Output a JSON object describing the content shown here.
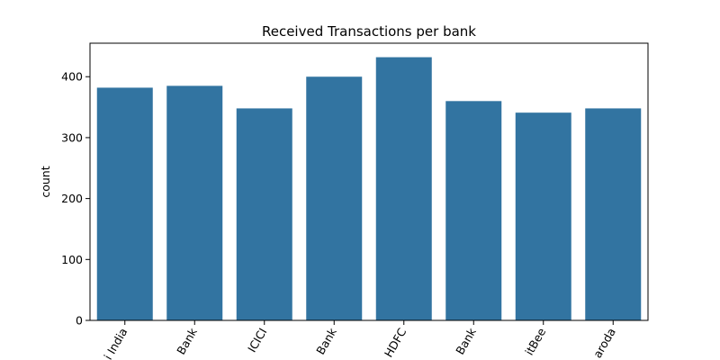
{
  "chart_data": {
    "type": "bar",
    "title": "Received Transactions per bank",
    "xlabel": "",
    "ylabel": "count",
    "categories": [
      "State Bank of India",
      "Axis Bank",
      "ICICI",
      "Kotak Bank",
      "HDFC",
      "Yes Bank",
      "PaytmBee",
      "Bank of Baroda"
    ],
    "visible_tick_text": [
      "i India",
      "Bank",
      "ICICI",
      "Bank",
      "HDFC",
      "Bank",
      "itBee",
      "aroda"
    ],
    "values": [
      382,
      385,
      348,
      400,
      432,
      360,
      341,
      348
    ],
    "ylim": [
      0,
      455
    ],
    "yticks": [
      0,
      100,
      200,
      300,
      400
    ],
    "bar_color": "#3274a1",
    "grid": false,
    "legend": "none"
  }
}
